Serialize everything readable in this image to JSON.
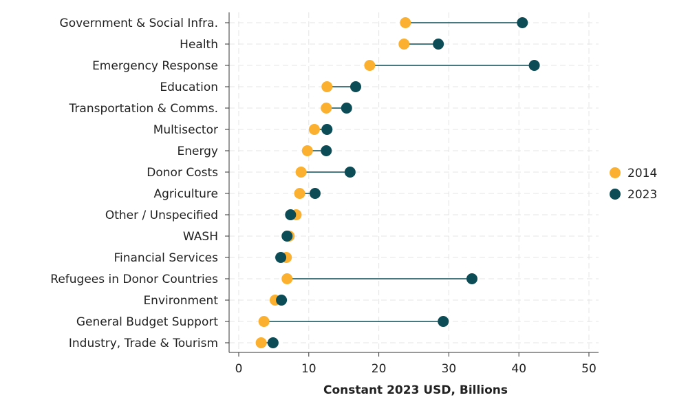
{
  "chart_data": {
    "type": "dumbbell",
    "title": "",
    "xlabel": "Constant 2023 USD, Billions",
    "ylabel": "",
    "xlim": [
      0,
      50
    ],
    "xticks": [
      0,
      10,
      20,
      30,
      40,
      50
    ],
    "grid": true,
    "legend_position": "right",
    "categories": [
      "Government & Social Infra.",
      "Health",
      "Emergency Response",
      "Education",
      "Transportation & Comms.",
      "Multisector",
      "Energy",
      "Donor Costs",
      "Agriculture",
      "Other / Unspecified",
      "WASH",
      "Financial Services",
      "Refugees in Donor Countries",
      "Environment",
      "General Budget Support",
      "Industry, Trade & Tourism"
    ],
    "series": [
      {
        "name": "2014",
        "color": "#FBB12F",
        "values": [
          23.8,
          23.6,
          18.7,
          12.6,
          12.5,
          10.8,
          9.8,
          8.9,
          8.7,
          8.2,
          7.2,
          6.8,
          6.9,
          5.2,
          3.6,
          3.2
        ]
      },
      {
        "name": "2023",
        "color": "#0B4C57",
        "values": [
          40.5,
          28.5,
          42.2,
          16.7,
          15.4,
          12.6,
          12.5,
          15.9,
          10.9,
          7.4,
          6.9,
          6.0,
          33.3,
          6.1,
          29.2,
          4.9
        ]
      }
    ]
  }
}
